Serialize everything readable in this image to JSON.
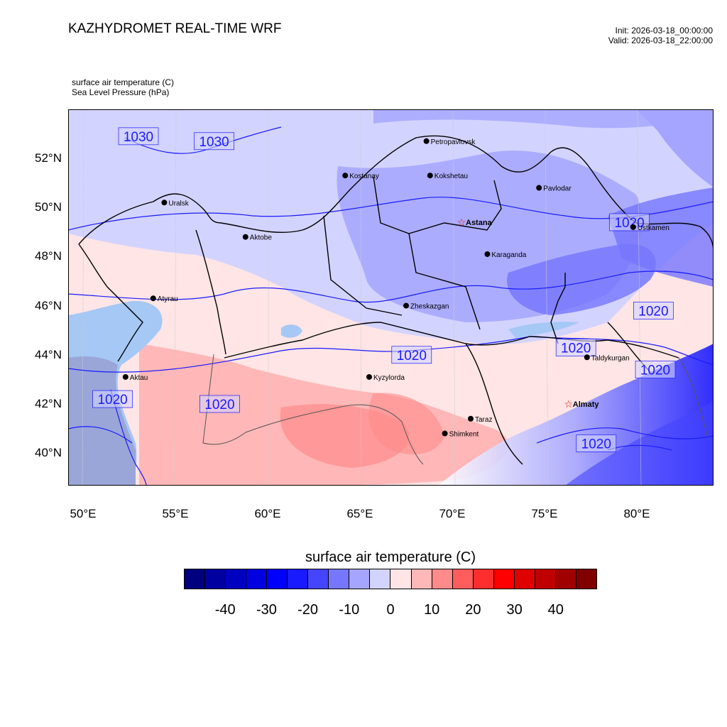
{
  "header": {
    "title": "KAZHYDROMET REAL-TIME WRF",
    "init": "Init: 2026-03-18_00:00:00",
    "valid": "Valid: 2026-03-18_22:00:00"
  },
  "fields": {
    "temperature": "surface air temperature   (C)",
    "pressure": "Sea Level Pressure   (hPa)"
  },
  "map": {
    "lat_labels": [
      {
        "value": 52,
        "text": "52°N"
      },
      {
        "value": 50,
        "text": "50°N"
      },
      {
        "value": 48,
        "text": "48°N"
      },
      {
        "value": 46,
        "text": "46°N"
      },
      {
        "value": 44,
        "text": "44°N"
      },
      {
        "value": 42,
        "text": "42°N"
      },
      {
        "value": 40,
        "text": "40°N"
      }
    ],
    "lon_labels": [
      {
        "value": 50,
        "text": "50°E"
      },
      {
        "value": 55,
        "text": "55°E"
      },
      {
        "value": 60,
        "text": "60°E"
      },
      {
        "value": 65,
        "text": "65°E"
      },
      {
        "value": 70,
        "text": "70°E"
      },
      {
        "value": 75,
        "text": "75°E"
      },
      {
        "value": 80,
        "text": "80°E"
      }
    ],
    "cities": [
      {
        "name": "Petropavlovsk",
        "lon": 68.6,
        "lat": 52.7,
        "capital": false
      },
      {
        "name": "Kostanay",
        "lon": 64.2,
        "lat": 51.3,
        "capital": false
      },
      {
        "name": "Kokshetau",
        "lon": 68.8,
        "lat": 51.3,
        "capital": false
      },
      {
        "name": "Pavlodar",
        "lon": 74.7,
        "lat": 50.8,
        "capital": false
      },
      {
        "name": "Uralsk",
        "lon": 54.4,
        "lat": 50.2,
        "capital": false
      },
      {
        "name": "Aktobe",
        "lon": 58.8,
        "lat": 48.8,
        "capital": false
      },
      {
        "name": "Astana",
        "lon": 70.5,
        "lat": 49.4,
        "capital": true
      },
      {
        "name": "Ustkamen",
        "lon": 79.8,
        "lat": 49.2,
        "capital": false
      },
      {
        "name": "Karaganda",
        "lon": 71.9,
        "lat": 48.1,
        "capital": false
      },
      {
        "name": "Atyrau",
        "lon": 53.8,
        "lat": 46.3,
        "capital": false
      },
      {
        "name": "Zheskazgan",
        "lon": 67.5,
        "lat": 46.0,
        "capital": false
      },
      {
        "name": "Taldykurgan",
        "lon": 77.3,
        "lat": 43.9,
        "capital": false
      },
      {
        "name": "Kyzylorda",
        "lon": 65.5,
        "lat": 43.1,
        "capital": false
      },
      {
        "name": "Aktau",
        "lon": 52.3,
        "lat": 43.1,
        "capital": false
      },
      {
        "name": "Almaty",
        "lon": 76.3,
        "lat": 42.0,
        "capital": true
      },
      {
        "name": "Taraz",
        "lon": 71.0,
        "lat": 41.4,
        "capital": false
      },
      {
        "name": "Shimkent",
        "lon": 69.6,
        "lat": 40.8,
        "capital": false
      }
    ],
    "isobar_labels": [
      {
        "text": "1030",
        "lon": 53.0,
        "lat": 52.9
      },
      {
        "text": "1030",
        "lon": 57.1,
        "lat": 52.7
      },
      {
        "text": "1020",
        "lon": 79.6,
        "lat": 49.4
      },
      {
        "text": "1020",
        "lon": 80.9,
        "lat": 45.8
      },
      {
        "text": "1020",
        "lon": 76.7,
        "lat": 44.3
      },
      {
        "text": "1020",
        "lon": 81.0,
        "lat": 43.4
      },
      {
        "text": "1020",
        "lon": 67.8,
        "lat": 44.0
      },
      {
        "text": "1020",
        "lon": 51.6,
        "lat": 42.2
      },
      {
        "text": "1020",
        "lon": 57.4,
        "lat": 42.0
      },
      {
        "text": "1020",
        "lon": 77.8,
        "lat": 40.4
      }
    ],
    "colors": {
      "isobar": "#1a1aff",
      "city_dot": "#000000",
      "capital_star": "#ff0000",
      "border": "#000000"
    }
  },
  "colorbar": {
    "title": "surface air temperature  (C)",
    "tick_labels": [
      "-40",
      "-30",
      "-20",
      "-10",
      "0",
      "10",
      "20",
      "30",
      "40"
    ],
    "colors": [
      "#00007f",
      "#0000a0",
      "#0000c0",
      "#0000e0",
      "#0000ff",
      "#1a1aff",
      "#4545ff",
      "#7676ff",
      "#a5a5ff",
      "#d3d3ff",
      "#ffe5e5",
      "#ffb7b7",
      "#ff8a8a",
      "#ff5c5c",
      "#ff2e2e",
      "#ff0000",
      "#e00000",
      "#c00000",
      "#a00000",
      "#800000"
    ]
  }
}
